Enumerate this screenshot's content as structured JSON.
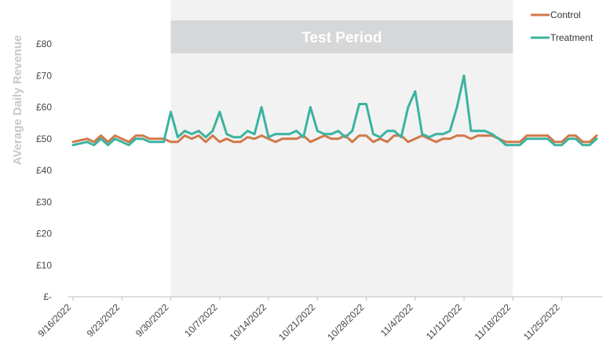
{
  "chart_data": {
    "type": "line",
    "ylabel": "AVerage Daily Revenue",
    "ylim": [
      0,
      80
    ],
    "y_ticks": [
      0,
      10,
      20,
      30,
      40,
      50,
      60,
      70,
      80
    ],
    "y_tick_labels": [
      "£-",
      "£10",
      "£20",
      "£30",
      "£40",
      "£50",
      "£60",
      "£70",
      "£80"
    ],
    "x_start": "9/16/2022",
    "x_tick_labels": [
      "9/16/2022",
      "9/23/2022",
      "9/30/2022",
      "10/7/2022",
      "10/14/2022",
      "10/21/2022",
      "10/28/2022",
      "11/4/2022",
      "11/11/2022",
      "11/18/2022",
      "11/25/2022"
    ],
    "shaded_region": {
      "label": "Test Period",
      "start": "9/30/2022",
      "end": "11/18/2022"
    },
    "legend_position": "top-right",
    "series": [
      {
        "name": "Control",
        "color": "#d07848",
        "values": [
          49,
          49.5,
          50,
          49,
          51,
          49,
          51,
          50,
          49,
          51,
          51,
          50,
          50,
          50,
          49,
          49,
          51,
          50,
          51,
          49,
          51,
          49,
          50,
          49,
          49,
          50.5,
          50,
          51,
          50,
          49,
          50,
          50,
          50,
          51,
          49,
          50,
          51,
          50,
          50,
          51,
          49,
          51,
          51,
          49,
          50,
          49,
          51,
          51,
          49,
          50,
          51,
          50,
          49,
          50,
          50,
          51,
          51,
          50,
          51,
          51,
          51,
          50,
          49,
          49,
          49,
          51,
          51,
          51,
          51,
          49,
          49,
          51,
          51,
          49,
          49,
          51
        ]
      },
      {
        "name": "Treatment",
        "color": "#3bb3a0",
        "values": [
          48,
          48.5,
          49,
          48,
          50,
          48,
          50,
          49,
          48,
          50,
          50,
          49,
          49,
          49,
          58.5,
          50.5,
          52.5,
          51.5,
          52.5,
          50.5,
          52.5,
          58.5,
          51.5,
          50.5,
          50.5,
          52.5,
          51.5,
          60,
          50.5,
          51.5,
          51.5,
          51.5,
          52.5,
          50.5,
          60,
          52.5,
          51.5,
          51.5,
          52.5,
          50.5,
          52.5,
          61,
          61,
          51.5,
          50.5,
          52.5,
          52.5,
          50.5,
          60,
          65,
          51.5,
          50.5,
          51.5,
          51.5,
          52.5,
          60,
          70,
          52.5,
          52.5,
          52.5,
          51.5,
          50,
          48,
          48,
          48,
          50,
          50,
          50,
          50,
          48,
          48,
          50,
          50,
          48,
          48,
          50
        ]
      }
    ]
  }
}
